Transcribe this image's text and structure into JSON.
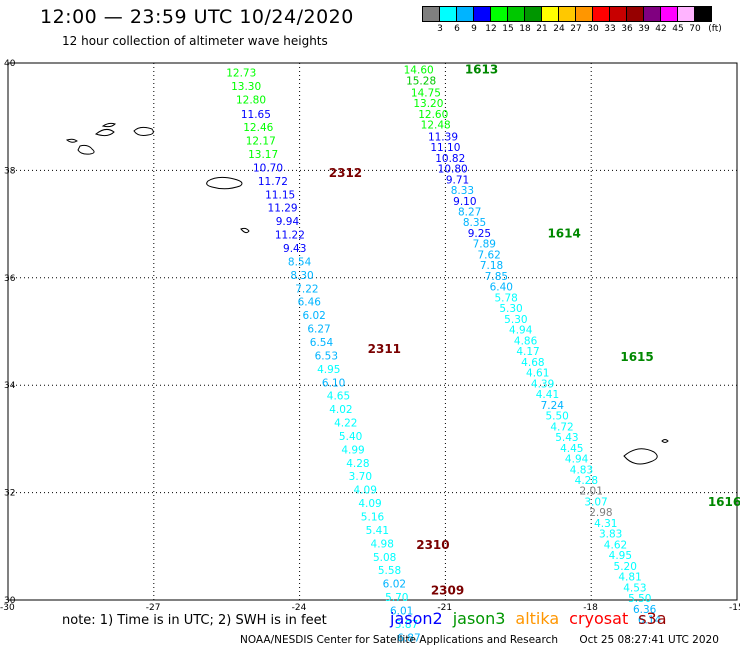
{
  "header": {
    "title": "12:00 — 23:59 UTC 10/24/2020",
    "subtitle": "12 hour collection of altimeter wave heights"
  },
  "colorbar": {
    "unit": "(ft)",
    "bins": [
      {
        "label": "3",
        "color": "#7f7f7f"
      },
      {
        "label": "6",
        "color": "#00ffff"
      },
      {
        "label": "9",
        "color": "#00b4ff"
      },
      {
        "label": "12",
        "color": "#0000ff"
      },
      {
        "label": "15",
        "color": "#00ff00"
      },
      {
        "label": "18",
        "color": "#00c800"
      },
      {
        "label": "21",
        "color": "#009600"
      },
      {
        "label": "24",
        "color": "#ffff00"
      },
      {
        "label": "27",
        "color": "#ffc800"
      },
      {
        "label": "30",
        "color": "#ff9600"
      },
      {
        "label": "33",
        "color": "#ff0000"
      },
      {
        "label": "36",
        "color": "#c80000"
      },
      {
        "label": "39",
        "color": "#960000"
      },
      {
        "label": "42",
        "color": "#800080"
      },
      {
        "label": "45",
        "color": "#ff00ff"
      },
      {
        "label": "70",
        "color": "#ffb4ff"
      },
      {
        "label": "",
        "color": "#000000"
      }
    ]
  },
  "map": {
    "lat_labels": [
      "40",
      "38",
      "36",
      "34",
      "32",
      "30"
    ],
    "lon_labels": [
      "-30",
      "-27",
      "-24",
      "-21",
      "-18",
      "-15"
    ],
    "extent": {
      "lon": [
        -30,
        -15
      ],
      "lat": [
        30,
        40
      ]
    },
    "passes": [
      {
        "id": "2312",
        "lon": -23.4,
        "lat": 37.88
      },
      {
        "id": "2311",
        "lon": -22.6,
        "lat": 34.6
      },
      {
        "id": "2310",
        "lon": -21.6,
        "lat": 30.95
      },
      {
        "id": "2309",
        "lon": -21.3,
        "lat": 30.1
      },
      {
        "id": "1613",
        "lon": -20.6,
        "lat": 39.8
      },
      {
        "id": "1614",
        "lon": -18.9,
        "lat": 36.75
      },
      {
        "id": "1615",
        "lon": -17.4,
        "lat": 34.45
      },
      {
        "id": "1616",
        "lon": -15.6,
        "lat": 31.75
      }
    ],
    "track_a": [
      {
        "v": "12.73",
        "lon": -25.2,
        "lat": 39.75
      },
      {
        "v": "13.30",
        "lon": -25.1,
        "lat": 39.5
      },
      {
        "v": "12.80",
        "lon": -25.0,
        "lat": 39.25
      },
      {
        "v": "11.65",
        "lon": -24.9,
        "lat": 38.98
      },
      {
        "v": "12.46",
        "lon": -24.85,
        "lat": 38.73
      },
      {
        "v": "12.17",
        "lon": -24.8,
        "lat": 38.48
      },
      {
        "v": "13.17",
        "lon": -24.75,
        "lat": 38.23
      },
      {
        "v": "10.70",
        "lon": -24.65,
        "lat": 37.98
      },
      {
        "v": "11.72",
        "lon": -24.55,
        "lat": 37.73
      },
      {
        "v": "11.15",
        "lon": -24.4,
        "lat": 37.48
      },
      {
        "v": "11.29",
        "lon": -24.35,
        "lat": 37.23
      },
      {
        "v": "9.94",
        "lon": -24.25,
        "lat": 36.98
      },
      {
        "v": "11.22",
        "lon": -24.2,
        "lat": 36.73
      },
      {
        "v": "9.43",
        "lon": -24.1,
        "lat": 36.48
      },
      {
        "v": "8.54",
        "lon": -24.0,
        "lat": 36.23
      },
      {
        "v": "8.30",
        "lon": -23.95,
        "lat": 35.98
      },
      {
        "v": "7.22",
        "lon": -23.85,
        "lat": 35.73
      },
      {
        "v": "6.46",
        "lon": -23.8,
        "lat": 35.48
      },
      {
        "v": "6.02",
        "lon": -23.7,
        "lat": 35.23
      },
      {
        "v": "6.27",
        "lon": -23.6,
        "lat": 34.98
      },
      {
        "v": "6.54",
        "lon": -23.55,
        "lat": 34.73
      },
      {
        "v": "6.53",
        "lon": -23.45,
        "lat": 34.48
      },
      {
        "v": "4.95",
        "lon": -23.4,
        "lat": 34.23
      },
      {
        "v": "6.10",
        "lon": -23.3,
        "lat": 33.98
      },
      {
        "v": "4.65",
        "lon": -23.2,
        "lat": 33.73
      },
      {
        "v": "4.02",
        "lon": -23.15,
        "lat": 33.48
      },
      {
        "v": "4.22",
        "lon": -23.05,
        "lat": 33.23
      },
      {
        "v": "5.40",
        "lon": -22.95,
        "lat": 32.98
      },
      {
        "v": "4.99",
        "lon": -22.9,
        "lat": 32.73
      },
      {
        "v": "4.28",
        "lon": -22.8,
        "lat": 32.48
      },
      {
        "v": "3.70",
        "lon": -22.75,
        "lat": 32.23
      },
      {
        "v": "4.09",
        "lon": -22.65,
        "lat": 31.98
      },
      {
        "v": "4.09",
        "lon": -22.55,
        "lat": 31.73
      },
      {
        "v": "5.16",
        "lon": -22.5,
        "lat": 31.48
      },
      {
        "v": "5.41",
        "lon": -22.4,
        "lat": 31.23
      },
      {
        "v": "4.98",
        "lon": -22.3,
        "lat": 30.98
      },
      {
        "v": "5.08",
        "lon": -22.25,
        "lat": 30.73
      },
      {
        "v": "5.58",
        "lon": -22.15,
        "lat": 30.48
      },
      {
        "v": "6.02",
        "lon": -22.05,
        "lat": 30.23
      },
      {
        "v": "5.70",
        "lon": -22.0,
        "lat": 29.98
      },
      {
        "v": "6.01",
        "lon": -21.9,
        "lat": 29.73
      },
      {
        "v": "5.87",
        "lon": -21.8,
        "lat": 29.48
      },
      {
        "v": "6.87",
        "lon": -21.75,
        "lat": 29.23
      }
    ],
    "track_b": [
      {
        "v": "14.60",
        "lon": -21.55,
        "lat": 39.8
      },
      {
        "v": "15.28",
        "lon": -21.5,
        "lat": 39.6
      },
      {
        "v": "14.75",
        "lon": -21.4,
        "lat": 39.38
      },
      {
        "v": "13.20",
        "lon": -21.35,
        "lat": 39.18
      },
      {
        "v": "12.60",
        "lon": -21.25,
        "lat": 38.98
      },
      {
        "v": "12.48",
        "lon": -21.2,
        "lat": 38.78
      },
      {
        "v": "11.39",
        "lon": -21.05,
        "lat": 38.56
      },
      {
        "v": "11.10",
        "lon": -21.0,
        "lat": 38.36
      },
      {
        "v": "10.82",
        "lon": -20.9,
        "lat": 38.16
      },
      {
        "v": "10.80",
        "lon": -20.85,
        "lat": 37.96
      },
      {
        "v": "9.71",
        "lon": -20.75,
        "lat": 37.76
      },
      {
        "v": "8.33",
        "lon": -20.65,
        "lat": 37.56
      },
      {
        "v": "9.10",
        "lon": -20.6,
        "lat": 37.36
      },
      {
        "v": "8.27",
        "lon": -20.5,
        "lat": 37.16
      },
      {
        "v": "8.35",
        "lon": -20.4,
        "lat": 36.96
      },
      {
        "v": "9.25",
        "lon": -20.3,
        "lat": 36.76
      },
      {
        "v": "7.89",
        "lon": -20.2,
        "lat": 36.56
      },
      {
        "v": "7.62",
        "lon": -20.1,
        "lat": 36.36
      },
      {
        "v": "7.18",
        "lon": -20.05,
        "lat": 36.16
      },
      {
        "v": "7.85",
        "lon": -19.95,
        "lat": 35.96
      },
      {
        "v": "6.40",
        "lon": -19.85,
        "lat": 35.76
      },
      {
        "v": "5.78",
        "lon": -19.75,
        "lat": 35.56
      },
      {
        "v": "5.30",
        "lon": -19.65,
        "lat": 35.36
      },
      {
        "v": "5.30",
        "lon": -19.55,
        "lat": 35.16
      },
      {
        "v": "4.94",
        "lon": -19.45,
        "lat": 34.96
      },
      {
        "v": "4.86",
        "lon": -19.35,
        "lat": 34.76
      },
      {
        "v": "4.17",
        "lon": -19.3,
        "lat": 34.56
      },
      {
        "v": "4.68",
        "lon": -19.2,
        "lat": 34.36
      },
      {
        "v": "4.61",
        "lon": -19.1,
        "lat": 34.16
      },
      {
        "v": "4.39",
        "lon": -19.0,
        "lat": 33.96
      },
      {
        "v": "4.41",
        "lon": -18.9,
        "lat": 33.76
      },
      {
        "v": "7.24",
        "lon": -18.8,
        "lat": 33.56
      },
      {
        "v": "5.50",
        "lon": -18.7,
        "lat": 33.36
      },
      {
        "v": "4.72",
        "lon": -18.6,
        "lat": 33.16
      },
      {
        "v": "5.43",
        "lon": -18.5,
        "lat": 32.96
      },
      {
        "v": "4.45",
        "lon": -18.4,
        "lat": 32.76
      },
      {
        "v": "4.94",
        "lon": -18.3,
        "lat": 32.56
      },
      {
        "v": "4.83",
        "lon": -18.2,
        "lat": 32.36
      },
      {
        "v": "4.28",
        "lon": -18.1,
        "lat": 32.16
      },
      {
        "v": "2.01",
        "lon": -18.0,
        "lat": 31.96
      },
      {
        "v": "3.07",
        "lon": -17.9,
        "lat": 31.76
      },
      {
        "v": "2.98",
        "lon": -17.8,
        "lat": 31.56
      },
      {
        "v": "4.31",
        "lon": -17.7,
        "lat": 31.36
      },
      {
        "v": "3.83",
        "lon": -17.6,
        "lat": 31.16
      },
      {
        "v": "4.62",
        "lon": -17.5,
        "lat": 30.96
      },
      {
        "v": "4.95",
        "lon": -17.4,
        "lat": 30.76
      },
      {
        "v": "5.20",
        "lon": -17.3,
        "lat": 30.56
      },
      {
        "v": "4.81",
        "lon": -17.2,
        "lat": 30.36
      },
      {
        "v": "4.53",
        "lon": -17.1,
        "lat": 30.16
      },
      {
        "v": "5.50",
        "lon": -17.0,
        "lat": 29.96
      },
      {
        "v": "6.36",
        "lon": -16.9,
        "lat": 29.76
      },
      {
        "v": "6.14",
        "lon": -16.8,
        "lat": 29.56
      }
    ]
  },
  "legend": {
    "note": "note: 1) Time is in UTC; 2) SWH is in feet",
    "satellites": [
      {
        "name": "jason2",
        "color": "#0000ff"
      },
      {
        "name": "jason3",
        "color": "#009600"
      },
      {
        "name": "altika",
        "color": "#ff9600"
      },
      {
        "name": "cryosat",
        "color": "#ff0000"
      },
      {
        "name": "s3a",
        "color": "#960000"
      }
    ]
  },
  "footer": {
    "credit": "NOAA/NESDIS Center for Satellite Applications and Research",
    "timestamp": "Oct 25 08:27:41 UTC 2020"
  }
}
